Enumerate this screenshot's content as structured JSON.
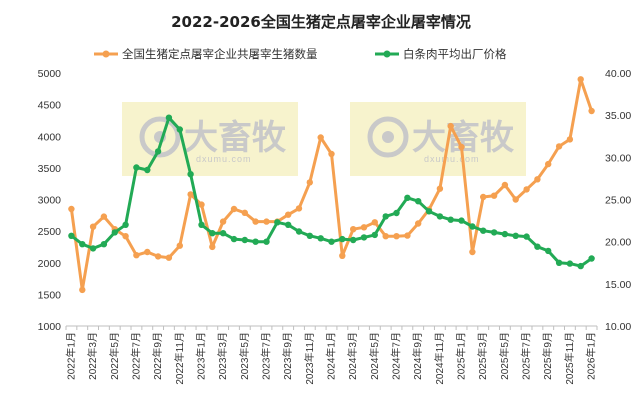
{
  "chart_data": {
    "type": "line",
    "title": "2022-2026全国生猪定点屠宰企业屠宰情况",
    "watermark": {
      "brand": "大畜牧",
      "url": "dxumu.com"
    },
    "x": [
      "2022年1月",
      "2022年2月",
      "2022年3月",
      "2022年4月",
      "2022年5月",
      "2022年6月",
      "2022年7月",
      "2022年8月",
      "2022年9月",
      "2022年10月",
      "2022年11月",
      "2022年12月",
      "2023年1月",
      "2023年2月",
      "2023年3月",
      "2023年4月",
      "2023年5月",
      "2023年6月",
      "2023年7月",
      "2023年8月",
      "2023年9月",
      "2023年10月",
      "2023年11月",
      "2023年12月",
      "2024年1月",
      "2024年2月",
      "2024年3月",
      "2024年4月",
      "2024年5月",
      "2024年6月",
      "2024年7月",
      "2024年8月",
      "2024年9月",
      "2024年10月",
      "2024年11月",
      "2024年12月",
      "2025年1月",
      "2025年2月",
      "2025年3月",
      "2025年4月",
      "2025年5月",
      "2025年6月",
      "2025年7月",
      "2025年8月",
      "2025年9月",
      "2025年10月",
      "2025年11月",
      "2025年12月",
      "2026年1月"
    ],
    "x_tick_labels": [
      "2022年1月",
      "2022年3月",
      "2022年5月",
      "2022年7月",
      "2022年9月",
      "2022年11月",
      "2023年1月",
      "2023年3月",
      "2023年5月",
      "2023年7月",
      "2023年9月",
      "2023年11月",
      "2024年1月",
      "2024年3月",
      "2024年5月",
      "2024年7月",
      "2024年9月",
      "2024年11月",
      "2025年1月",
      "2025年3月",
      "2025年5月",
      "2025年7月",
      "2025年9月",
      "2025年11月",
      "2026年1月"
    ],
    "y_left": {
      "min": 1000,
      "max": 5000,
      "ticks": [
        1000,
        1500,
        2000,
        2500,
        3000,
        3500,
        4000,
        4500,
        5000
      ]
    },
    "y_right": {
      "min": 10,
      "max": 40,
      "ticks": [
        "10.00",
        "15.00",
        "20.00",
        "25.00",
        "30.00",
        "35.00",
        "40.00"
      ]
    },
    "legend_position": "top",
    "grid": false,
    "series": [
      {
        "name": "全国生猪定点屠宰企业共屠宰生猪数量",
        "axis": "left",
        "color": "#f5a050",
        "values": [
          2850,
          1570,
          2570,
          2730,
          2530,
          2420,
          2120,
          2170,
          2100,
          2080,
          2270,
          3080,
          2920,
          2250,
          2650,
          2850,
          2790,
          2650,
          2650,
          2650,
          2760,
          2860,
          3270,
          3980,
          3720,
          2110,
          2530,
          2560,
          2640,
          2420,
          2420,
          2430,
          2620,
          2840,
          3170,
          4160,
          3830,
          2170,
          3040,
          3060,
          3230,
          3000,
          3160,
          3320,
          3560,
          3840,
          3950,
          4900,
          4400
        ]
      },
      {
        "name": "白条肉平均出厂价格",
        "axis": "right",
        "color": "#22aa55",
        "values": [
          20.7,
          19.7,
          19.2,
          19.7,
          21.1,
          22.0,
          28.8,
          28.5,
          30.7,
          34.7,
          33.3,
          28.0,
          22.0,
          21.0,
          21.0,
          20.3,
          20.2,
          20.0,
          20.0,
          22.3,
          22.0,
          21.2,
          20.7,
          20.4,
          20.0,
          20.3,
          20.2,
          20.5,
          20.8,
          23.0,
          23.4,
          25.2,
          24.8,
          23.6,
          23.0,
          22.6,
          22.5,
          21.8,
          21.3,
          21.1,
          20.9,
          20.7,
          20.6,
          19.4,
          18.9,
          17.5,
          17.4,
          17.1,
          18.0
        ]
      }
    ]
  }
}
